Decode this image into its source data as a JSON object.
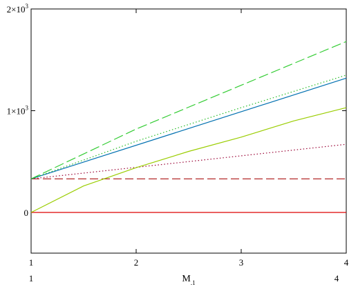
{
  "chart_data": {
    "type": "line",
    "title": "",
    "xlabel": "M",
    "xlabel_sub": ".1",
    "xrange_labels": {
      "left": "1",
      "right": "4"
    },
    "xlim": [
      1,
      4
    ],
    "ylim": [
      -400,
      2000
    ],
    "yticks": [
      {
        "value": 0,
        "base": "0",
        "exp": ""
      },
      {
        "value": 1000,
        "base": "1×10",
        "exp": "3"
      },
      {
        "value": 2000,
        "base": "2×10",
        "exp": "3"
      }
    ],
    "xticks": [
      {
        "value": 1,
        "label": "1"
      },
      {
        "value": 2,
        "label": "2"
      },
      {
        "value": 3,
        "label": "3"
      },
      {
        "value": 4,
        "label": "4"
      }
    ],
    "grid": false,
    "legend": false,
    "series": [
      {
        "color": "#dd0000",
        "dash": "solid",
        "x": [
          1,
          4
        ],
        "y": [
          0,
          0
        ]
      },
      {
        "color": "#aa1111",
        "dash": "dashed",
        "x": [
          1,
          4
        ],
        "y": [
          330,
          330
        ]
      },
      {
        "color": "#990033",
        "dash": "dotted",
        "x": [
          1,
          4
        ],
        "y": [
          330,
          670
        ]
      },
      {
        "color": "#9acd00",
        "dash": "solid",
        "x": [
          1,
          1.5,
          2,
          2.5,
          3,
          3.5,
          4
        ],
        "y": [
          0,
          260,
          440,
          600,
          740,
          900,
          1030
        ]
      },
      {
        "color": "#0070b0",
        "dash": "solid",
        "x": [
          1,
          4
        ],
        "y": [
          330,
          1320
        ]
      },
      {
        "color": "#22bb22",
        "dash": "dotted",
        "x": [
          1,
          2,
          3,
          4
        ],
        "y": [
          330,
          700,
          1030,
          1350
        ]
      },
      {
        "color": "#33cc33",
        "dash": "longdash",
        "x": [
          1,
          2,
          3,
          4
        ],
        "y": [
          330,
          820,
          1250,
          1680
        ]
      }
    ]
  }
}
